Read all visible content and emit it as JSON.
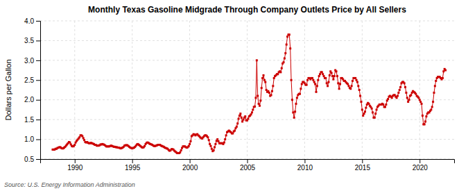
{
  "chart_data": {
    "type": "line",
    "title": "Monthly Texas Gasoline Midgrade Through Company Outlets Price by All Sellers",
    "ylabel": "Dollars per Gallon",
    "source": "Source: U.S. Energy Information Administration",
    "color": "#cc0000",
    "marker": "square",
    "line_style": "solid",
    "grid": true,
    "xlim": [
      1987.0,
      2023.0
    ],
    "ylim": [
      0.5,
      4.0
    ],
    "xticks": [
      1990,
      1995,
      2000,
      2005,
      2010,
      2015,
      2020
    ],
    "yticks": [
      0.5,
      {
        "value": 1.0,
        "label": "1.0"
      },
      1.5,
      {
        "value": 2.0,
        "label": "2.0"
      },
      2.5,
      {
        "value": 3.0,
        "label": "3.0"
      },
      3.5,
      {
        "value": 4.0,
        "label": "4.0"
      }
    ],
    "x": [
      1988.083,
      1988.167,
      1988.25,
      1988.333,
      1988.417,
      1988.5,
      1988.583,
      1988.667,
      1988.75,
      1988.833,
      1988.917,
      1989.0,
      1989.083,
      1989.167,
      1989.25,
      1989.333,
      1989.417,
      1989.5,
      1989.583,
      1989.667,
      1989.75,
      1989.833,
      1989.917,
      1990.0,
      1990.083,
      1990.167,
      1990.25,
      1990.333,
      1990.417,
      1990.5,
      1990.583,
      1990.667,
      1990.75,
      1990.833,
      1990.917,
      1991.0,
      1991.083,
      1991.167,
      1991.25,
      1991.333,
      1991.417,
      1991.5,
      1991.583,
      1991.667,
      1991.75,
      1991.833,
      1991.917,
      1992.0,
      1992.083,
      1992.167,
      1992.25,
      1992.333,
      1992.417,
      1992.5,
      1992.583,
      1992.667,
      1992.75,
      1992.833,
      1992.917,
      1993.0,
      1993.083,
      1993.167,
      1993.25,
      1993.333,
      1993.417,
      1993.5,
      1993.583,
      1993.667,
      1993.75,
      1993.833,
      1993.917,
      1994.0,
      1994.083,
      1994.167,
      1994.25,
      1994.333,
      1994.417,
      1994.5,
      1994.583,
      1994.667,
      1994.75,
      1994.833,
      1994.917,
      1995.0,
      1995.083,
      1995.167,
      1995.25,
      1995.333,
      1995.417,
      1995.5,
      1995.583,
      1995.667,
      1995.75,
      1995.833,
      1995.917,
      1996.0,
      1996.083,
      1996.167,
      1996.25,
      1996.333,
      1996.417,
      1996.5,
      1996.583,
      1996.667,
      1996.75,
      1996.833,
      1996.917,
      1997.0,
      1997.083,
      1997.167,
      1997.25,
      1997.333,
      1997.417,
      1997.5,
      1997.583,
      1997.667,
      1997.75,
      1997.833,
      1997.917,
      1998.0,
      1998.083,
      1998.167,
      1998.25,
      1998.333,
      1998.417,
      1998.5,
      1998.583,
      1998.667,
      1998.75,
      1998.833,
      1998.917,
      1999.0,
      1999.083,
      1999.167,
      1999.25,
      1999.333,
      1999.417,
      1999.5,
      1999.583,
      1999.667,
      1999.75,
      1999.833,
      1999.917,
      2000.0,
      2000.083,
      2000.167,
      2000.25,
      2000.333,
      2000.417,
      2000.5,
      2000.583,
      2000.667,
      2000.75,
      2000.833,
      2000.917,
      2001.0,
      2001.083,
      2001.167,
      2001.25,
      2001.333,
      2001.417,
      2001.5,
      2001.583,
      2001.667,
      2001.75,
      2001.833,
      2001.917,
      2002.0,
      2002.083,
      2002.167,
      2002.25,
      2002.333,
      2002.417,
      2002.5,
      2002.583,
      2002.667,
      2002.75,
      2002.833,
      2002.917,
      2003.0,
      2003.083,
      2003.167,
      2003.25,
      2003.333,
      2003.417,
      2003.5,
      2003.583,
      2003.667,
      2003.75,
      2003.833,
      2003.917,
      2004.0,
      2004.083,
      2004.167,
      2004.25,
      2004.333,
      2004.417,
      2004.5,
      2004.583,
      2004.667,
      2004.75,
      2004.833,
      2004.917,
      2005.0,
      2005.083,
      2005.167,
      2005.25,
      2005.333,
      2005.417,
      2005.5,
      2005.583,
      2005.667,
      2005.75,
      2005.833,
      2005.917,
      2006.0,
      2006.083,
      2006.167,
      2006.25,
      2006.333,
      2006.417,
      2006.5,
      2006.583,
      2006.667,
      2006.75,
      2006.833,
      2006.917,
      2007.0,
      2007.083,
      2007.167,
      2007.25,
      2007.333,
      2007.417,
      2007.5,
      2007.583,
      2007.667,
      2007.75,
      2007.833,
      2007.917,
      2008.0,
      2008.083,
      2008.167,
      2008.25,
      2008.333,
      2008.417,
      2008.5,
      2008.583,
      2008.667,
      2008.75,
      2008.833,
      2008.917,
      2009.0,
      2009.083,
      2009.167,
      2009.25,
      2009.333,
      2009.417,
      2009.5,
      2009.583,
      2009.667,
      2009.75,
      2009.833,
      2009.917,
      2010.0,
      2010.083,
      2010.167,
      2010.25,
      2010.333,
      2010.417,
      2010.5,
      2010.583,
      2010.667,
      2010.75,
      2010.833,
      2010.917,
      2011.0,
      2011.083,
      2011.167,
      2011.25,
      2011.333,
      2011.417,
      2011.5,
      2011.583,
      2011.667,
      2011.75,
      2011.833,
      2011.917,
      2012.0,
      2012.083,
      2012.167,
      2012.25,
      2012.333,
      2012.417,
      2012.5,
      2012.583,
      2012.667,
      2012.75,
      2012.833,
      2012.917,
      2013.0,
      2013.083,
      2013.167,
      2013.25,
      2013.333,
      2013.417,
      2013.5,
      2013.583,
      2013.667,
      2013.75,
      2013.833,
      2013.917,
      2014.0,
      2014.083,
      2014.167,
      2014.25,
      2014.333,
      2014.417,
      2014.5,
      2014.583,
      2014.667,
      2014.75,
      2014.833,
      2014.917,
      2015.0,
      2015.083,
      2015.167,
      2015.25,
      2015.333,
      2015.417,
      2015.5,
      2015.583,
      2015.667,
      2015.75,
      2015.833,
      2015.917,
      2016.0,
      2016.083,
      2016.167,
      2016.25,
      2016.333,
      2016.417,
      2016.5,
      2016.583,
      2016.667,
      2016.75,
      2016.833,
      2016.917,
      2017.0,
      2017.083,
      2017.167,
      2017.25,
      2017.333,
      2017.417,
      2017.5,
      2017.583,
      2017.667,
      2017.75,
      2017.833,
      2017.917,
      2018.0,
      2018.083,
      2018.167,
      2018.25,
      2018.333,
      2018.417,
      2018.5,
      2018.583,
      2018.667,
      2018.75,
      2018.833,
      2018.917,
      2019.0,
      2019.083,
      2019.167,
      2019.25,
      2019.333,
      2019.417,
      2019.5,
      2019.583,
      2019.667,
      2019.75,
      2019.833,
      2019.917,
      2020.0,
      2020.083,
      2020.167,
      2020.25,
      2020.333,
      2020.417,
      2020.5,
      2020.583,
      2020.667,
      2020.75,
      2020.833,
      2020.917,
      2021.0,
      2021.083,
      2021.167,
      2021.25,
      2021.333,
      2021.417,
      2021.5,
      2021.583,
      2021.667,
      2021.75,
      2021.833,
      2021.917,
      2022.0,
      2022.083,
      2022.167,
      2022.25
    ],
    "values": [
      0.74,
      0.74,
      0.74,
      0.76,
      0.76,
      0.78,
      0.79,
      0.8,
      0.8,
      0.78,
      0.77,
      0.77,
      0.79,
      0.81,
      0.84,
      0.87,
      0.9,
      0.93,
      0.92,
      0.87,
      0.83,
      0.82,
      0.83,
      0.86,
      0.92,
      0.96,
      0.99,
      1.02,
      1.05,
      1.1,
      1.1,
      1.08,
      1.03,
      0.98,
      0.93,
      0.92,
      0.93,
      0.91,
      0.9,
      0.9,
      0.91,
      0.9,
      0.89,
      0.88,
      0.86,
      0.86,
      0.84,
      0.84,
      0.84,
      0.85,
      0.87,
      0.87,
      0.88,
      0.87,
      0.86,
      0.84,
      0.82,
      0.82,
      0.82,
      0.82,
      0.83,
      0.84,
      0.83,
      0.82,
      0.81,
      0.81,
      0.8,
      0.8,
      0.79,
      0.79,
      0.78,
      0.77,
      0.78,
      0.79,
      0.81,
      0.84,
      0.85,
      0.85,
      0.85,
      0.83,
      0.81,
      0.79,
      0.78,
      0.77,
      0.78,
      0.79,
      0.81,
      0.84,
      0.87,
      0.88,
      0.86,
      0.84,
      0.82,
      0.8,
      0.79,
      0.8,
      0.83,
      0.88,
      0.91,
      0.92,
      0.91,
      0.89,
      0.88,
      0.87,
      0.86,
      0.84,
      0.83,
      0.83,
      0.84,
      0.85,
      0.86,
      0.86,
      0.86,
      0.84,
      0.83,
      0.82,
      0.81,
      0.79,
      0.78,
      0.77,
      0.76,
      0.73,
      0.71,
      0.72,
      0.75,
      0.75,
      0.74,
      0.71,
      0.69,
      0.67,
      0.65,
      0.65,
      0.65,
      0.67,
      0.72,
      0.78,
      0.82,
      0.82,
      0.82,
      0.8,
      0.79,
      0.8,
      0.83,
      0.88,
      0.95,
      1.08,
      1.1,
      1.13,
      1.12,
      1.1,
      1.12,
      1.13,
      1.1,
      1.08,
      1.05,
      1.03,
      1.02,
      1.05,
      1.08,
      1.1,
      1.1,
      1.08,
      1.05,
      0.98,
      0.88,
      0.83,
      0.76,
      0.7,
      0.72,
      0.8,
      0.88,
      0.96,
      1.0,
      0.95,
      0.9,
      0.9,
      0.9,
      0.9,
      0.88,
      0.92,
      1.0,
      1.1,
      1.18,
      1.2,
      1.22,
      1.2,
      1.18,
      1.15,
      1.15,
      1.2,
      1.22,
      1.28,
      1.32,
      1.4,
      1.52,
      1.6,
      1.65,
      1.55,
      1.45,
      1.5,
      1.55,
      1.58,
      1.48,
      1.48,
      1.52,
      1.58,
      1.6,
      1.63,
      1.68,
      1.75,
      1.82,
      1.83,
      2.05,
      3.0,
      2.1,
      1.9,
      1.85,
      1.98,
      2.3,
      2.55,
      2.62,
      2.5,
      2.45,
      2.25,
      2.2,
      2.22,
      2.18,
      2.1,
      2.12,
      2.22,
      2.35,
      2.55,
      2.6,
      2.62,
      2.65,
      2.65,
      2.7,
      2.72,
      2.7,
      2.8,
      2.92,
      2.95,
      3.05,
      3.18,
      3.4,
      3.6,
      3.65,
      3.65,
      3.3,
      2.5,
      2.0,
      1.68,
      1.55,
      1.7,
      1.9,
      2.05,
      2.12,
      2.15,
      2.15,
      2.28,
      2.4,
      2.45,
      2.45,
      2.42,
      2.38,
      2.38,
      2.5,
      2.55,
      2.55,
      2.52,
      2.55,
      2.55,
      2.5,
      2.45,
      2.4,
      2.2,
      2.35,
      2.5,
      2.6,
      2.65,
      2.7,
      2.7,
      2.65,
      2.6,
      2.55,
      2.55,
      2.42,
      2.35,
      2.45,
      2.62,
      2.72,
      2.68,
      2.6,
      2.52,
      2.6,
      2.75,
      2.72,
      2.6,
      2.42,
      2.28,
      2.4,
      2.55,
      2.55,
      2.52,
      2.48,
      2.48,
      2.45,
      2.42,
      2.4,
      2.35,
      2.3,
      2.28,
      2.35,
      2.48,
      2.55,
      2.55,
      2.55,
      2.5,
      2.45,
      2.35,
      2.25,
      2.1,
      1.95,
      1.75,
      1.6,
      1.65,
      1.7,
      1.8,
      1.88,
      1.92,
      1.9,
      1.85,
      1.82,
      1.78,
      1.68,
      1.55,
      1.55,
      1.65,
      1.75,
      1.82,
      1.85,
      1.88,
      1.88,
      1.88,
      1.9,
      1.88,
      1.82,
      1.82,
      1.88,
      1.98,
      2.02,
      2.08,
      2.1,
      2.08,
      2.05,
      2.1,
      2.12,
      2.12,
      2.08,
      2.05,
      2.1,
      2.18,
      2.25,
      2.32,
      2.42,
      2.45,
      2.45,
      2.42,
      2.32,
      2.18,
      2.05,
      1.95,
      2.0,
      2.1,
      2.12,
      2.18,
      2.22,
      2.2,
      2.18,
      2.15,
      2.1,
      2.08,
      2.05,
      2.0,
      1.95,
      1.9,
      1.6,
      1.38,
      1.38,
      1.45,
      1.58,
      1.65,
      1.68,
      1.68,
      1.72,
      1.75,
      1.82,
      1.95,
      2.18,
      2.35,
      2.48,
      2.55,
      2.58,
      2.58,
      2.58,
      2.55,
      2.52,
      2.55,
      2.72,
      2.78,
      2.75
    ]
  }
}
